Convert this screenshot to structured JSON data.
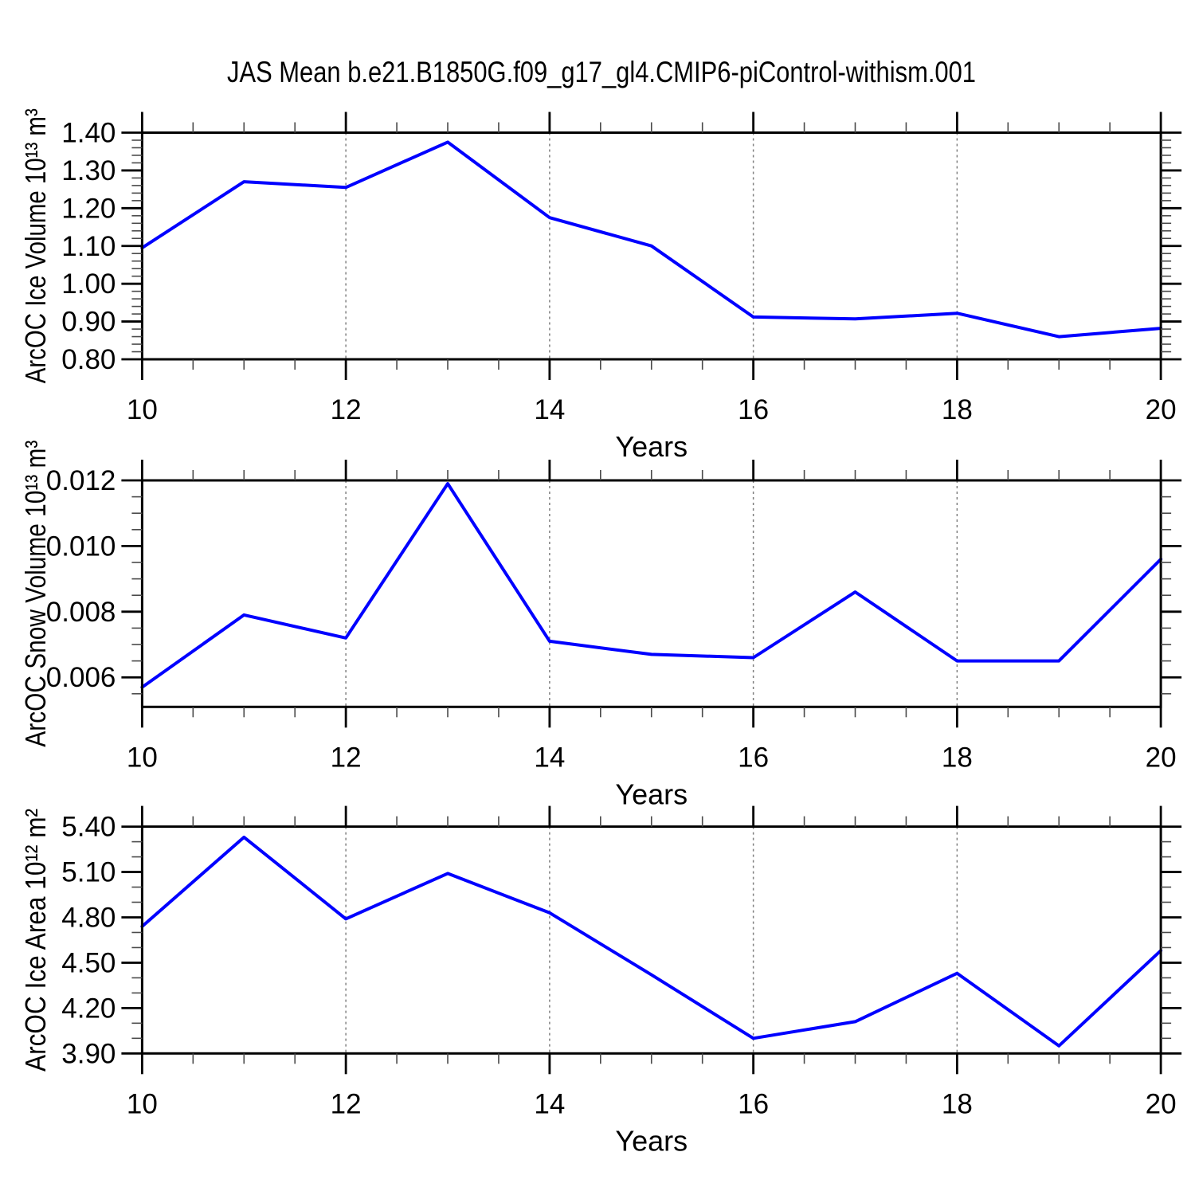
{
  "title": "JAS Mean b.e21.B1850G.f09_g17_gl4.CMIP6-piControl-withism.001",
  "colors": {
    "line": "#0000ff",
    "axis": "#000000",
    "grid": "#808080",
    "background": "#ffffff"
  },
  "chart_data": [
    {
      "type": "line",
      "name": "ice-volume",
      "ylabel": "ArcOC Ice Volume 10¹³ m³",
      "xlabel": "Years",
      "x": [
        10,
        11,
        12,
        13,
        14,
        15,
        16,
        17,
        18,
        19,
        20
      ],
      "values": [
        1.095,
        1.27,
        1.255,
        1.375,
        1.175,
        1.1,
        0.912,
        0.907,
        0.922,
        0.86,
        0.882
      ],
      "xlim": [
        10,
        20
      ],
      "ylim": [
        0.8,
        1.4
      ],
      "xticks": [
        10,
        12,
        14,
        16,
        18,
        20
      ],
      "xtick_labels": [
        "10",
        "12",
        "14",
        "16",
        "18",
        "20"
      ],
      "x_minor_step": 0.5,
      "yticks": [
        0.8,
        0.9,
        1.0,
        1.1,
        1.2,
        1.3,
        1.4
      ],
      "ytick_labels": [
        "0.80",
        "0.90",
        "1.00",
        "1.10",
        "1.20",
        "1.30",
        "1.40"
      ],
      "y_minor_step": 0.02,
      "grid_x": [
        12,
        14,
        16,
        18
      ],
      "line_color": "#0000ff",
      "grid_on": true,
      "legend": "none"
    },
    {
      "type": "line",
      "name": "snow-volume",
      "ylabel": "ArcOC Snow Volume 10¹³ m³",
      "xlabel": "Years",
      "x": [
        10,
        11,
        12,
        13,
        14,
        15,
        16,
        17,
        18,
        19,
        20
      ],
      "values": [
        0.0057,
        0.0079,
        0.0072,
        0.0119,
        0.0071,
        0.0067,
        0.0066,
        0.0086,
        0.0065,
        0.0065,
        0.0096
      ],
      "xlim": [
        10,
        20
      ],
      "ylim": [
        0.0051,
        0.012
      ],
      "xticks": [
        10,
        12,
        14,
        16,
        18,
        20
      ],
      "xtick_labels": [
        "10",
        "12",
        "14",
        "16",
        "18",
        "20"
      ],
      "x_minor_step": 0.5,
      "yticks": [
        0.006,
        0.008,
        0.01,
        0.012
      ],
      "ytick_labels": [
        "0.006",
        "0.008",
        "0.010",
        "0.012"
      ],
      "y_minor_step": 0.0005,
      "grid_x": [
        12,
        14,
        16,
        18
      ],
      "line_color": "#0000ff",
      "grid_on": true,
      "legend": "none"
    },
    {
      "type": "line",
      "name": "ice-area",
      "ylabel": "ArcOC Ice Area 10¹² m²",
      "xlabel": "Years",
      "x": [
        10,
        11,
        12,
        13,
        14,
        15,
        16,
        17,
        18,
        19,
        20
      ],
      "values": [
        4.74,
        5.33,
        4.79,
        5.09,
        4.83,
        4.42,
        4.0,
        4.11,
        4.43,
        3.95,
        4.58
      ],
      "xlim": [
        10,
        20
      ],
      "ylim": [
        3.9,
        5.4
      ],
      "xticks": [
        10,
        12,
        14,
        16,
        18,
        20
      ],
      "xtick_labels": [
        "10",
        "12",
        "14",
        "16",
        "18",
        "20"
      ],
      "x_minor_step": 0.5,
      "yticks": [
        3.9,
        4.2,
        4.5,
        4.8,
        5.1,
        5.4
      ],
      "ytick_labels": [
        "3.90",
        "4.20",
        "4.50",
        "4.80",
        "5.10",
        "5.40"
      ],
      "y_minor_step": 0.1,
      "grid_x": [
        12,
        14,
        16,
        18
      ],
      "line_color": "#0000ff",
      "grid_on": true,
      "legend": "none"
    }
  ]
}
